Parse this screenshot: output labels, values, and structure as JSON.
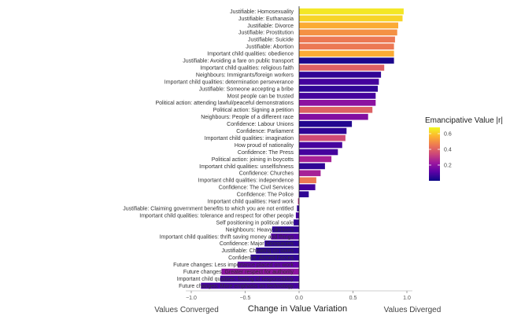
{
  "chart_data": {
    "type": "bar",
    "orientation": "horizontal",
    "categories": [
      "Justifiable: Homosexuality",
      "Justifiable: Euthanasia",
      "Justifiable: Divorce",
      "Justifiable: Prostitution",
      "Justifiable: Suicide",
      "Justifiable: Abortion",
      "Important child qualities: obedience",
      "Justifiable: Avoiding a fare on public transport",
      "Important child qualities: religious faith",
      "Neighbours: Immigrants/foreign workers",
      "Important child qualities: determination perseverance",
      "Justifiable: Someone accepting a bribe",
      "Most people can be trusted",
      "Political action: attending lawful/peaceful demonstrations",
      "Political action: Signing a petition",
      "Neighbours: People of a different race",
      "Confidence: Labour Unions",
      "Confidence: Parliament",
      "Important child qualities: imagination",
      "How proud of nationality",
      "Confidence: The Press",
      "Political action: joining in boycotts",
      "Important child qualities: unselfishness",
      "Confidence: Churches",
      "Important child qualities: independence",
      "Confidence: The Civil Services",
      "Confidence: The Police",
      "Important child qualities: Hard work",
      "Justifiable: Claiming government benefits to which you are not entitled",
      "Important child qualities: tolerance and respect for other people",
      "Self positioning in political scale",
      "Neighbours: Heavy drinkers",
      "Important child qualities: thrift saving money and things",
      "Confidence: Major Companies",
      "Justifiable: Cheating on taxes",
      "Confidence: Armed Forces",
      "Future changes: Less importance placed on work",
      "Future changes: Greater respect for authority",
      "Important child qualities: feeling of responsibility",
      "Future changes: More emphasis on technology"
    ],
    "values": [
      0.97,
      0.96,
      0.92,
      0.91,
      0.89,
      0.88,
      0.88,
      0.88,
      0.79,
      0.76,
      0.74,
      0.73,
      0.71,
      0.71,
      0.68,
      0.64,
      0.49,
      0.44,
      0.43,
      0.4,
      0.36,
      0.3,
      0.24,
      0.2,
      0.16,
      0.15,
      0.09,
      -0.01,
      -0.02,
      -0.03,
      -0.05,
      -0.25,
      -0.26,
      -0.32,
      -0.4,
      -0.45,
      -0.57,
      -0.72,
      -0.73,
      -0.91
    ],
    "color_values": [
      0.65,
      0.62,
      0.55,
      0.5,
      0.45,
      0.45,
      0.55,
      0.02,
      0.4,
      0.05,
      0.08,
      0.05,
      0.08,
      0.2,
      0.4,
      0.18,
      0.03,
      0.05,
      0.35,
      0.08,
      0.08,
      0.25,
      0.05,
      0.25,
      0.45,
      0.08,
      0.05,
      0.3,
      0.05,
      0.08,
      0.05,
      0.05,
      0.1,
      0.05,
      0.05,
      0.05,
      0.12,
      0.2,
      0.08,
      0.08
    ],
    "xlabel": "Change in Value Variation",
    "xlim": [
      -1.05,
      1.05
    ],
    "xticks": [
      -1.0,
      -0.5,
      0.0,
      0.5,
      1.0
    ],
    "xtick_labels": [
      "−1.0",
      "−0.5",
      "0.0",
      "0.5",
      "1.0"
    ],
    "annotations": {
      "left": "Values Converged",
      "right": "Values Diverged"
    },
    "legend": {
      "title": "Emancipative Value |r|",
      "ticks": [
        0.2,
        0.4,
        0.6
      ],
      "tick_labels": [
        "0.2",
        "0.4",
        "0.6"
      ],
      "range": [
        0.0,
        0.68
      ],
      "placement": "right",
      "palette": [
        "#0d0887",
        "#5c01a6",
        "#9c179e",
        "#cc4778",
        "#ed7953",
        "#fdb42f",
        "#f0f921"
      ]
    },
    "grid": false
  }
}
